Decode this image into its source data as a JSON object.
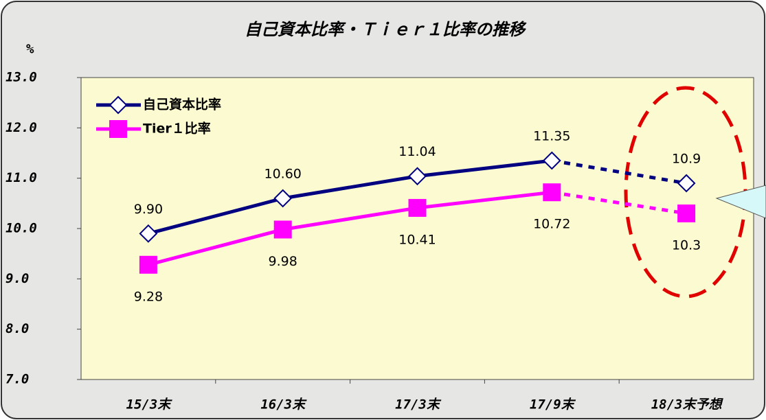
{
  "chart_data": {
    "type": "line",
    "title": "自己資本比率・Ｔｉｅｒ１比率の推移",
    "ylabel": "%",
    "categories": [
      "15/3末",
      "16/3末",
      "17/3末",
      "17/9末",
      "18/3末予想"
    ],
    "series": [
      {
        "name": "自己資本比率",
        "color": "#000080",
        "marker": "diamond",
        "values": [
          9.9,
          10.6,
          11.04,
          11.35,
          10.9
        ],
        "value_labels": [
          "9.90",
          "10.60",
          "11.04",
          "11.35",
          "10.9"
        ]
      },
      {
        "name": "Tier１比率",
        "color": "#ff00ff",
        "marker": "square",
        "values": [
          9.28,
          9.98,
          10.41,
          10.72,
          10.3
        ]
      }
    ],
    "ylim": [
      7,
      13
    ],
    "yticks": [
      {
        "value": 7,
        "label": "7.0"
      },
      {
        "value": 8,
        "label": "8.0"
      },
      {
        "value": 9,
        "label": "9.0"
      },
      {
        "value": 10,
        "label": "10.0"
      },
      {
        "value": 11,
        "label": "11.0"
      },
      {
        "value": 12,
        "label": "12.0"
      },
      {
        "value": 13,
        "label": "13.0"
      }
    ],
    "legend": "upper left"
  }
}
